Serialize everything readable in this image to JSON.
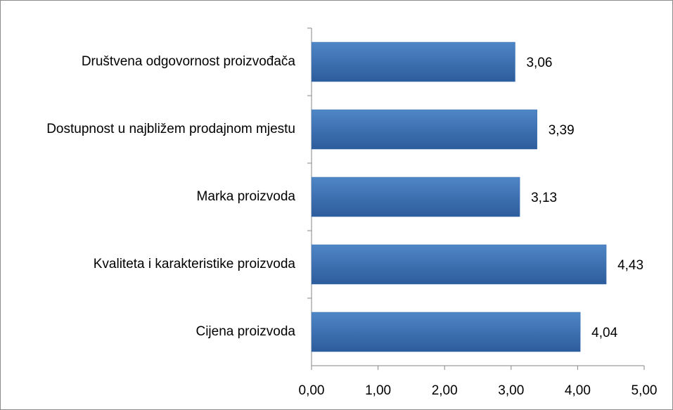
{
  "chart_data": {
    "type": "barh",
    "categories": [
      "Društvena odgovornost proizvođača",
      "Dostupnost u najbližem prodajnom mjestu",
      "Marka proizvoda",
      "Kvaliteta i karakteristike proizvoda",
      "Cijena proizvoda"
    ],
    "values": [
      3.06,
      3.39,
      3.13,
      4.43,
      4.04
    ],
    "value_labels": [
      "3,06",
      "3,39",
      "3,13",
      "4,43",
      "4,04"
    ],
    "color": "#3a6eb0",
    "xlim": [
      0,
      5
    ],
    "xticks": [
      {
        "value": 0,
        "label": "0,00"
      },
      {
        "value": 1,
        "label": "1,00"
      },
      {
        "value": 2,
        "label": "2,00"
      },
      {
        "value": 3,
        "label": "3,00"
      },
      {
        "value": 4,
        "label": "4,00"
      },
      {
        "value": 5,
        "label": "5,00"
      }
    ],
    "grid": false
  }
}
